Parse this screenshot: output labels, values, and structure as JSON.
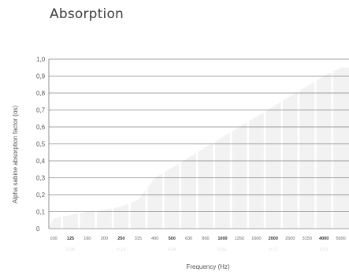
{
  "page": {
    "title": "Absorption"
  },
  "chart_data": {
    "type": "area",
    "title": "Absorption",
    "xlabel": "Frequency (Hz)",
    "ylabel": "Alpha sabine absorption factor  (αs)",
    "ylim": [
      0,
      1.0
    ],
    "yticks": [
      "0",
      "0,1",
      "0,2",
      "0,3",
      "0,4",
      "0,5",
      "0,6",
      "0,7",
      "0,8",
      "0,9",
      "1,0"
    ],
    "categories": [
      "100",
      "125",
      "160",
      "200",
      "250",
      "315",
      "400",
      "500",
      "630",
      "800",
      "1000",
      "1250",
      "1600",
      "2000",
      "2500",
      "3150",
      "4000",
      "5000"
    ],
    "bold_categories": [
      "125",
      "250",
      "500",
      "1000",
      "2000",
      "4000"
    ],
    "values": [
      0.06,
      0.08,
      0.1,
      0.11,
      0.13,
      0.17,
      0.3,
      0.36,
      0.42,
      0.48,
      0.54,
      0.6,
      0.66,
      0.72,
      0.78,
      0.84,
      0.9,
      0.95
    ],
    "octave_ratings": [
      {
        "freq": "125",
        "value": "0,06"
      },
      {
        "freq": "250",
        "value": "0,13"
      },
      {
        "freq": "500",
        "value": "0,34"
      },
      {
        "freq": "1000",
        "value": "0,51"
      },
      {
        "freq": "2000",
        "value": "0,72"
      },
      {
        "freq": "4000",
        "value": "0,93"
      }
    ],
    "grid": true,
    "colors": {
      "fill": "#f2f2f2",
      "gridline": "#4a4a4a",
      "gap": "#ffffff"
    }
  }
}
